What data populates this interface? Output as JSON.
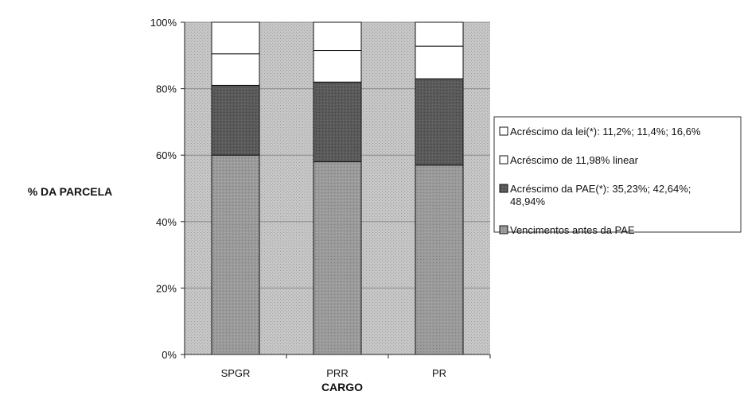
{
  "chart_data": {
    "type": "bar",
    "stacked": true,
    "percent": true,
    "categories": [
      "SPGR",
      "PRR",
      "PR"
    ],
    "series": [
      {
        "name": "Vencimentos antes da PAE",
        "values": [
          60,
          58,
          57
        ],
        "color": "#9a9a9a"
      },
      {
        "name": "Acréscimo da PAE(*): 35,23%; 42,64%; 48,94%",
        "values": [
          21,
          24,
          26
        ],
        "color": "#555555"
      },
      {
        "name": "Acréscimo de 11,98% linear",
        "values": [
          9.5,
          9.5,
          9.8
        ],
        "color": "#ffffff"
      },
      {
        "name": "Acréscimo da lei(*): 11,2%; 11,4%; 16,6%",
        "values": [
          9.5,
          8.5,
          7.2
        ],
        "color": "#ffffff"
      }
    ],
    "ylim": [
      0,
      100
    ],
    "yticks": [
      "0%",
      "20%",
      "40%",
      "60%",
      "80%",
      "100%"
    ],
    "xlabel": "CARGO",
    "ylabel": "% DA PARCELA",
    "legend_position": "right",
    "legend_lines": [
      {
        "series": 3,
        "lines": [
          "Acréscimo da lei(*): 11,2%; 11,4%; 16,6%"
        ]
      },
      {
        "series": 2,
        "lines": [
          "Acréscimo de 11,98% linear"
        ]
      },
      {
        "series": 1,
        "lines": [
          "Acréscimo da PAE(*): 35,23%; 42,64%;",
          "48,94%"
        ]
      },
      {
        "series": 0,
        "lines": [
          "Vencimentos antes da PAE"
        ]
      }
    ],
    "plot_background": "#c4c4c4",
    "grid": true
  }
}
